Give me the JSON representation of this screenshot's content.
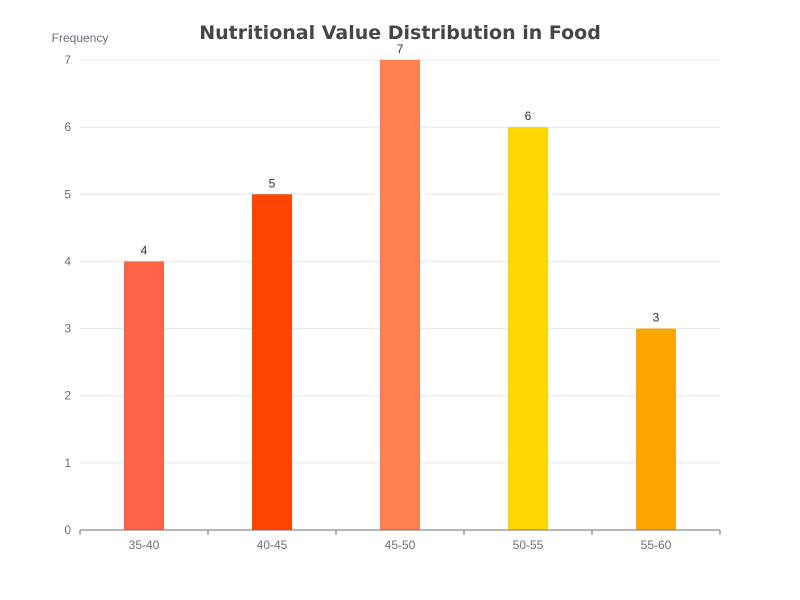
{
  "chart_data": {
    "type": "bar",
    "title": "Nutritional Value Distribution in Food",
    "xlabel": "",
    "ylabel": "Frequency",
    "categories": [
      "35-40",
      "40-45",
      "45-50",
      "50-55",
      "55-60"
    ],
    "values": [
      4,
      5,
      7,
      6,
      3
    ],
    "colors": [
      "#FF6347",
      "#FF4500",
      "#FF7F50",
      "#FFD700",
      "#FFA500"
    ],
    "ylim": [
      0,
      7
    ],
    "yticks": [
      0,
      1,
      2,
      3,
      4,
      5,
      6,
      7
    ],
    "grid": true,
    "legend": "none"
  }
}
